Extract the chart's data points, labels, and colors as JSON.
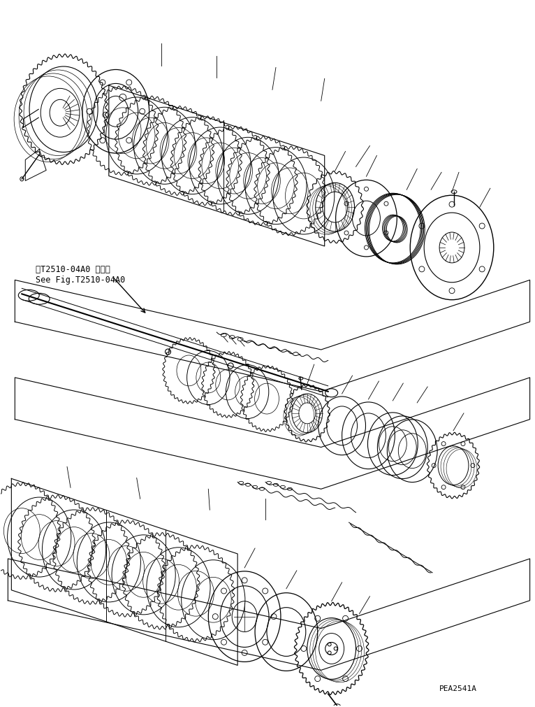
{
  "bg_color": "#ffffff",
  "line_color": "#000000",
  "fig_width": 7.66,
  "fig_height": 10.11,
  "dpi": 100,
  "watermark": "PEA2541A",
  "ref_text_line1": "第T2510-04A0 図参照",
  "ref_text_line2": "See Fig.T2510-04A0"
}
